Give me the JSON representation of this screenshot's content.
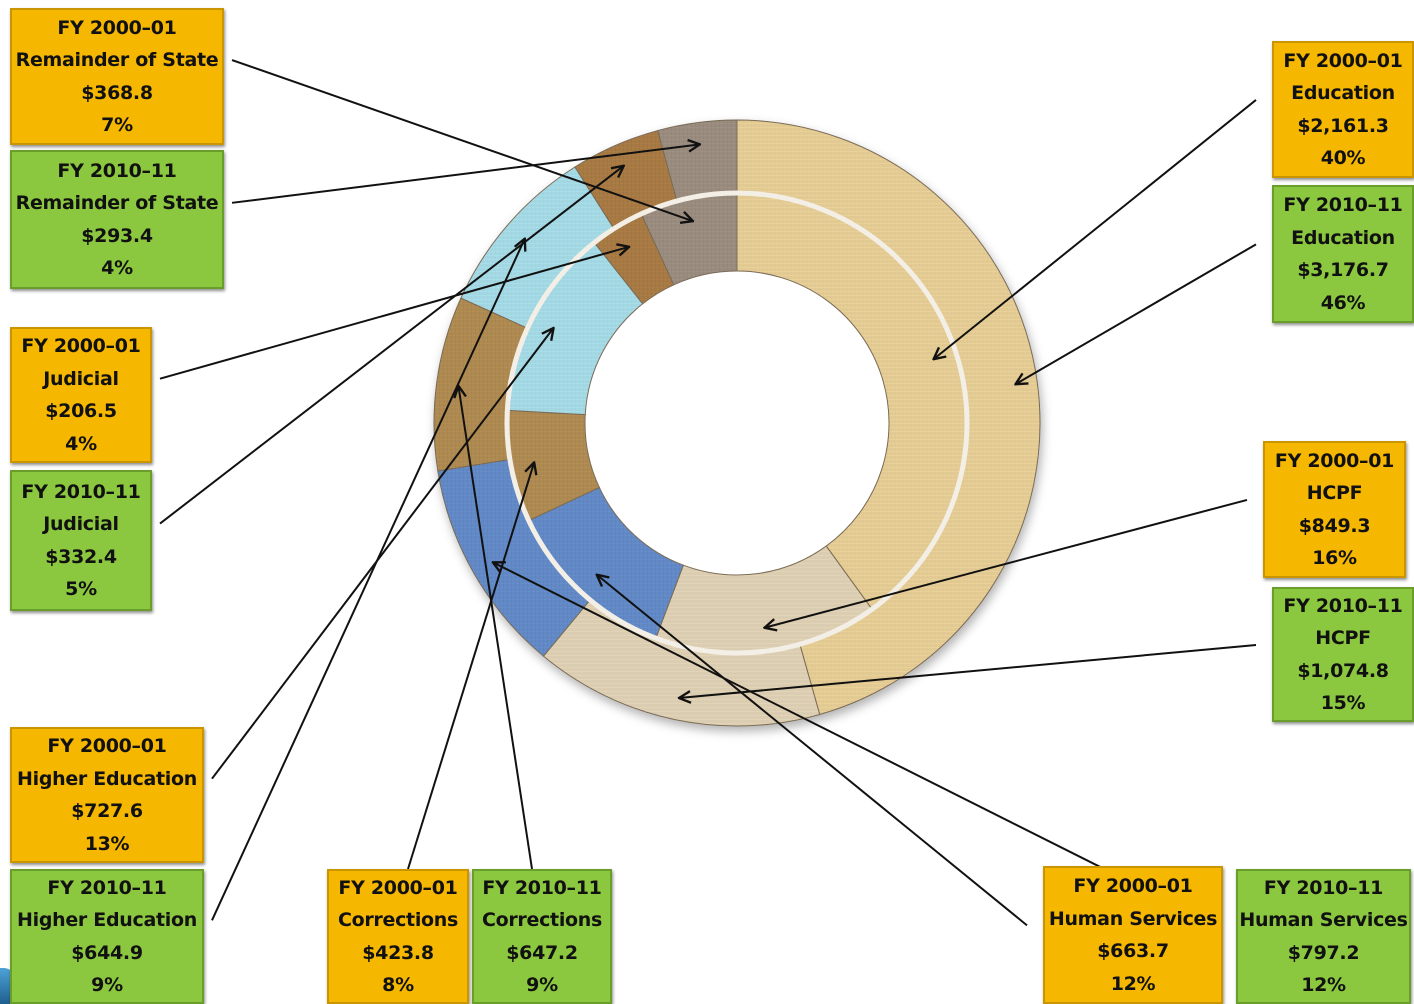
{
  "chart_data": {
    "type": "donut",
    "rings": [
      {
        "name": "FY 2000-01",
        "ring": "inner",
        "slices": [
          {
            "category": "Education",
            "value": 2161.3,
            "value_label": "$2,161.3",
            "percent_label": "40%"
          },
          {
            "category": "HCPF",
            "value": 849.3,
            "value_label": "$849.3",
            "percent_label": "16%"
          },
          {
            "category": "Human Services",
            "value": 663.7,
            "value_label": "$663.7",
            "percent_label": "12%"
          },
          {
            "category": "Corrections",
            "value": 423.8,
            "value_label": "$423.8",
            "percent_label": "8%"
          },
          {
            "category": "Higher Education",
            "value": 727.6,
            "value_label": "$727.6",
            "percent_label": "13%"
          },
          {
            "category": "Judicial",
            "value": 206.5,
            "value_label": "$206.5",
            "percent_label": "4%"
          },
          {
            "category": "Remainder of State",
            "value": 368.8,
            "value_label": "$368.8",
            "percent_label": "7%"
          }
        ]
      },
      {
        "name": "FY 2010-11",
        "ring": "outer",
        "slices": [
          {
            "category": "Education",
            "value": 3176.7,
            "value_label": "$3,176.7",
            "percent_label": "46%"
          },
          {
            "category": "HCPF",
            "value": 1074.8,
            "value_label": "$1,074.8",
            "percent_label": "15%"
          },
          {
            "category": "Human Services",
            "value": 797.2,
            "value_label": "$797.2",
            "percent_label": "12%"
          },
          {
            "category": "Corrections",
            "value": 647.2,
            "value_label": "$647.2",
            "percent_label": "9%"
          },
          {
            "category": "Higher Education",
            "value": 644.9,
            "value_label": "$644.9",
            "percent_label": "9%"
          },
          {
            "category": "Judicial",
            "value": 332.4,
            "value_label": "$332.4",
            "percent_label": "5%"
          },
          {
            "category": "Remainder of State",
            "value": 293.4,
            "value_label": "$293.4",
            "percent_label": "4%"
          }
        ]
      }
    ],
    "category_colors": {
      "Education": "#e8cf94",
      "HCPF": "#e2d3b4",
      "Human Services": "#5f89c8",
      "Corrections": "#b08a4e",
      "Higher Education": "#a5dde8",
      "Judicial": "#a9793f",
      "Remainder of State": "#9a8c7e"
    },
    "label_colors": {
      "FY 2000-01": "#f6b700",
      "FY 2010-11": "#8cc83f"
    }
  }
}
